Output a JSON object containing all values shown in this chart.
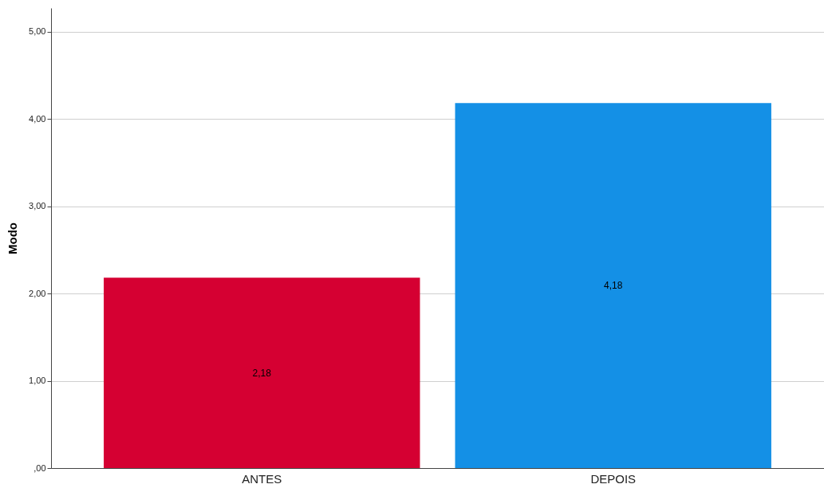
{
  "chart_data": {
    "type": "bar",
    "ylabel": "Modo",
    "categories": [
      "ANTES",
      "DEPOIS"
    ],
    "values": [
      2.18,
      4.18
    ],
    "colors": [
      "#d50032",
      "#1490e6"
    ],
    "value_labels": [
      "2,18",
      "4,18"
    ],
    "ylim": [
      0,
      5.27
    ],
    "yticks": [
      {
        "value": 0,
        "label": ",00"
      },
      {
        "value": 1,
        "label": "1,00"
      },
      {
        "value": 2,
        "label": "2,00"
      },
      {
        "value": 3,
        "label": "3,00"
      },
      {
        "value": 4,
        "label": "4,00"
      },
      {
        "value": 5,
        "label": "5,00"
      }
    ],
    "grid": "y",
    "legend": false
  }
}
